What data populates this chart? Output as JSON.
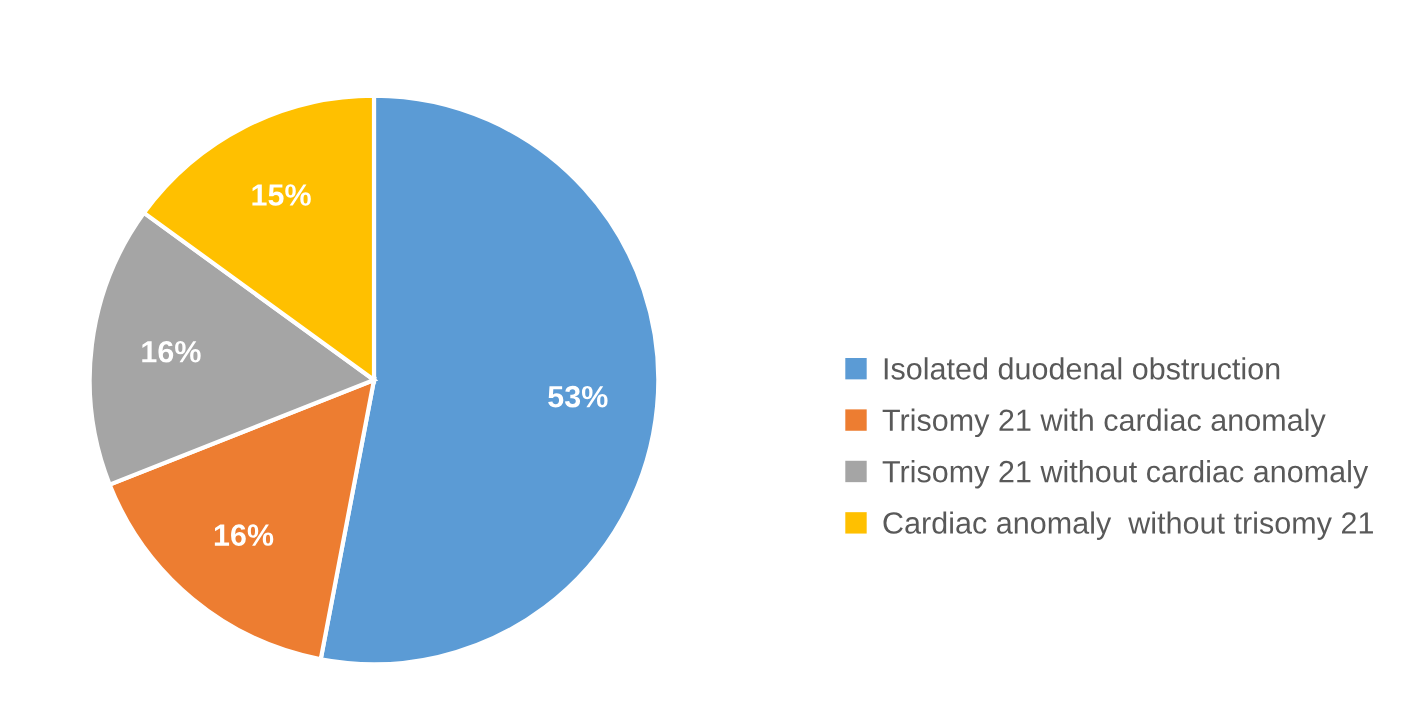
{
  "chart_data": {
    "type": "pie",
    "categories": [
      "Isolated duodenal obstruction",
      "Trisomy 21 with cardiac anomaly",
      "Trisomy 21 without cardiac anomaly",
      "Cardiac anomaly  without trisomy 21"
    ],
    "values": [
      53,
      16,
      16,
      15
    ],
    "colors": [
      "#5b9bd5",
      "#ed7d31",
      "#a5a5a5",
      "#ffc000"
    ],
    "value_labels": [
      "53%",
      "16%",
      "16%",
      "15%"
    ],
    "legend": "right"
  }
}
